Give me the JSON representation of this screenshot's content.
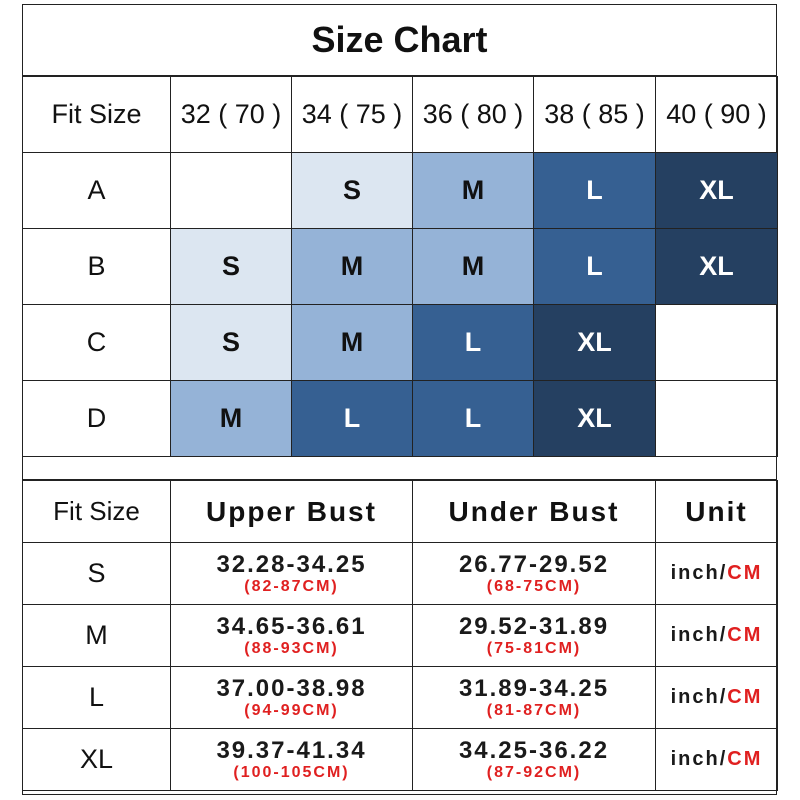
{
  "title": "Size Chart",
  "fit_table": {
    "header_label": "Fit Size",
    "columns": [
      "32 ( 70 )",
      "34 ( 75 )",
      "36 ( 80 )",
      "38 ( 85 )",
      "40 ( 90 )"
    ],
    "rows": [
      {
        "cup": "A",
        "sizes": [
          "",
          "S",
          "M",
          "L",
          "XL"
        ]
      },
      {
        "cup": "B",
        "sizes": [
          "S",
          "M",
          "M",
          "L",
          "XL"
        ]
      },
      {
        "cup": "C",
        "sizes": [
          "S",
          "M",
          "L",
          "XL",
          ""
        ]
      },
      {
        "cup": "D",
        "sizes": [
          "M",
          "L",
          "L",
          "XL",
          ""
        ]
      }
    ],
    "size_colors": {
      "S": {
        "bg": "#dce6f1",
        "fg": "#111111"
      },
      "M": {
        "bg": "#95b3d7",
        "fg": "#111111"
      },
      "L": {
        "bg": "#366092",
        "fg": "#ffffff"
      },
      "XL": {
        "bg": "#254061",
        "fg": "#ffffff"
      }
    }
  },
  "measure_table": {
    "headers": [
      "Fit Size",
      "Upper Bust",
      "Under Bust",
      "Unit"
    ],
    "unit_inch": "inch/",
    "unit_cm": "CM",
    "rows": [
      {
        "size": "S",
        "upper_inch": "32.28-34.25",
        "upper_cm": "(82-87CM)",
        "under_inch": "26.77-29.52",
        "under_cm": "(68-75CM)"
      },
      {
        "size": "M",
        "upper_inch": "34.65-36.61",
        "upper_cm": "(88-93CM)",
        "under_inch": "29.52-31.89",
        "under_cm": "(75-81CM)"
      },
      {
        "size": "L",
        "upper_inch": "37.00-38.98",
        "upper_cm": "(94-99CM)",
        "under_inch": "31.89-34.25",
        "under_cm": "(81-87CM)"
      },
      {
        "size": "XL",
        "upper_inch": "39.37-41.34",
        "upper_cm": "(100-105CM)",
        "under_inch": "34.25-36.22",
        "under_cm": "(87-92CM)"
      }
    ]
  },
  "colors": {
    "border": "#222222",
    "cm_red": "#e02020"
  }
}
